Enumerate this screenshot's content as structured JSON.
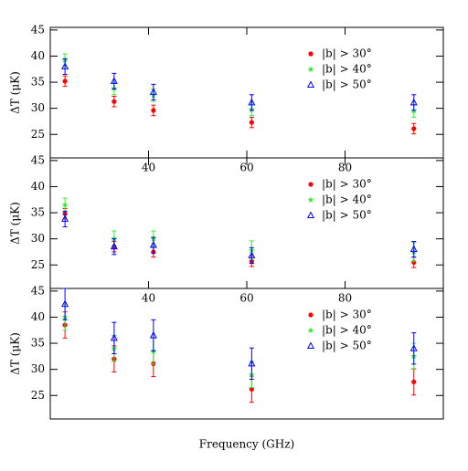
{
  "chart_data": [
    {
      "type": "scatter",
      "ylabel": "ΔT (μK)",
      "xlim": [
        20,
        100
      ],
      "ylim": [
        20.5,
        45.5
      ],
      "xticks": [
        40,
        60,
        80
      ],
      "yticks": [
        25,
        30,
        35,
        40,
        45
      ],
      "legend": "upper right",
      "x": [
        23,
        33,
        41,
        61,
        94
      ],
      "series": [
        {
          "name": "|b| > 30°",
          "color": "#ff0000",
          "marker": "circle",
          "values": [
            35.2,
            31.3,
            29.6,
            27.3,
            26.1
          ],
          "errors": [
            1.0,
            1.0,
            1.0,
            1.0,
            1.0
          ]
        },
        {
          "name": "|b| > 40°",
          "color": "#33ee33",
          "marker": "star",
          "values": [
            39.2,
            33.8,
            32.5,
            29.8,
            29.5
          ],
          "errors": [
            1.2,
            1.2,
            1.2,
            1.2,
            1.2
          ]
        },
        {
          "name": "|b| > 50°",
          "color": "#0000ff",
          "marker": "triangle",
          "values": [
            38.0,
            35.2,
            33.1,
            31.1,
            31.1
          ],
          "errors": [
            1.5,
            1.5,
            1.5,
            1.5,
            1.5
          ]
        }
      ]
    },
    {
      "type": "scatter",
      "ylabel": "ΔT (μK)",
      "xlim": [
        20,
        100
      ],
      "ylim": [
        20.5,
        45.5
      ],
      "xticks": [
        40,
        60,
        80
      ],
      "yticks": [
        25,
        30,
        35,
        40,
        45
      ],
      "legend": "upper right",
      "x": [
        23,
        33,
        41,
        61,
        94
      ],
      "series": [
        {
          "name": "|b| > 30°",
          "color": "#ff0000",
          "marker": "circle",
          "values": [
            34.8,
            28.5,
            27.5,
            25.7,
            25.5
          ],
          "errors": [
            1.0,
            1.0,
            1.0,
            1.0,
            1.0
          ]
        },
        {
          "name": "|b| > 40°",
          "color": "#33ee33",
          "marker": "star",
          "values": [
            36.5,
            30.0,
            30.0,
            27.8,
            27.5
          ],
          "errors": [
            1.3,
            1.5,
            1.5,
            1.8,
            1.8
          ]
        },
        {
          "name": "|b| > 50°",
          "color": "#0000ff",
          "marker": "triangle",
          "values": [
            33.8,
            28.5,
            28.8,
            26.8,
            28.0
          ],
          "errors": [
            1.5,
            1.5,
            1.5,
            1.5,
            1.5
          ]
        }
      ]
    },
    {
      "type": "scatter",
      "ylabel": "ΔT (μK)",
      "xlabel": "Frequency (GHz)",
      "xlim": [
        20,
        100
      ],
      "ylim": [
        20.5,
        45.5
      ],
      "yticks": [
        25,
        30,
        35,
        40,
        45
      ],
      "legend": "upper right",
      "x": [
        23,
        33,
        41,
        61,
        94
      ],
      "series": [
        {
          "name": "|b| > 30°",
          "color": "#ff0000",
          "marker": "circle",
          "values": [
            38.5,
            32.0,
            31.1,
            26.2,
            27.6
          ],
          "errors": [
            2.5,
            2.5,
            2.5,
            2.5,
            2.5
          ]
        },
        {
          "name": "|b| > 40°",
          "color": "#33ee33",
          "marker": "star",
          "values": [
            40.0,
            34.0,
            33.5,
            29.0,
            32.5
          ],
          "errors": [
            2.5,
            2.5,
            2.5,
            2.5,
            2.5
          ]
        },
        {
          "name": "|b| > 50°",
          "color": "#0000ff",
          "marker": "triangle",
          "values": [
            42.5,
            36.0,
            36.5,
            31.1,
            34.0
          ],
          "errors": [
            3.0,
            3.0,
            3.0,
            3.0,
            3.0
          ]
        }
      ]
    }
  ]
}
